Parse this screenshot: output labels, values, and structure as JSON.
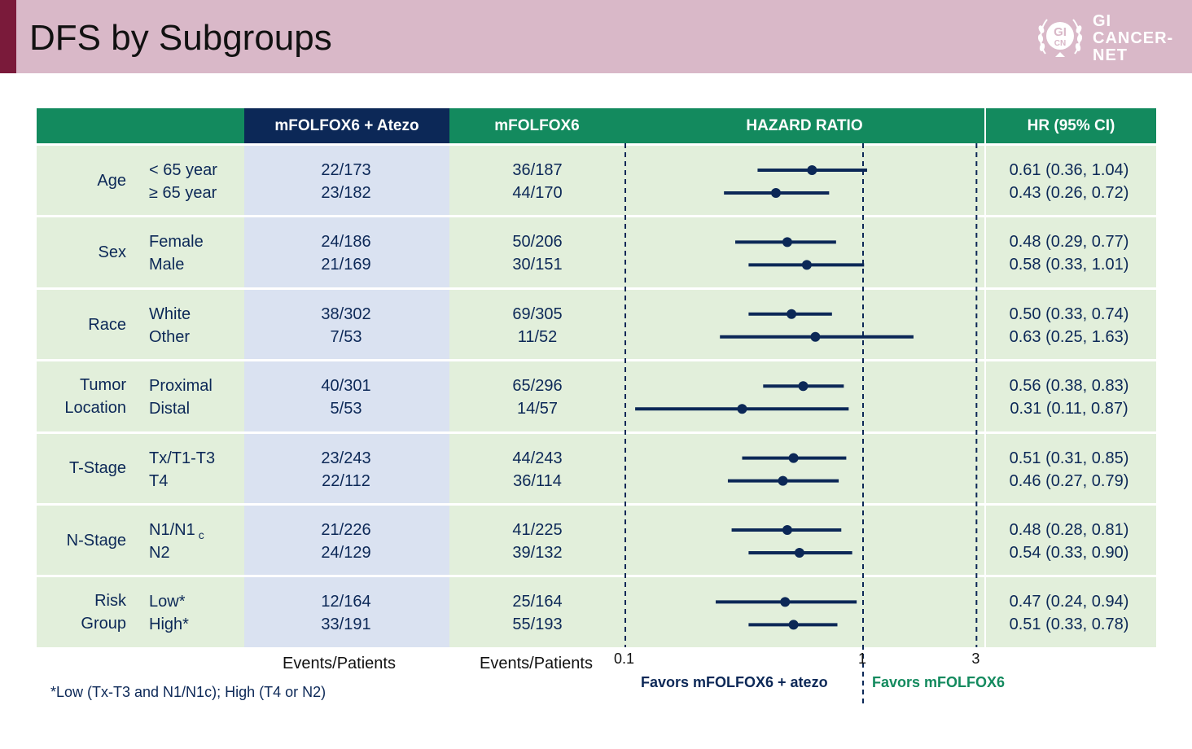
{
  "title": "DFS by Subgroups",
  "logo": {
    "lines": [
      "GI",
      "CANCER-",
      "NET"
    ],
    "badge_top": "GI",
    "badge_bottom": "CN"
  },
  "columns": {
    "atezo": "mFOLFOX6 + Atezo",
    "control": "mFOLFOX6",
    "hazard": "HAZARD RATIO",
    "hr": "HR (95% CI)"
  },
  "footer": {
    "events_atezo": "Events/Patients",
    "events_control": "Events/Patients",
    "favors_left": "Favors mFOLFOX6 + atezo",
    "favors_right": "Favors mFOLFOX6",
    "footnote": "*Low (Tx-T3 and N1/N1c); High (T4 or N2)"
  },
  "colors": {
    "header_band": "#d9b8c8",
    "accent": "#7a1a3a",
    "green": "#138a5e",
    "navy": "#0c2857",
    "row_green": "#e2efdb",
    "row_blue": "#dae2f1"
  },
  "chart_data": {
    "type": "forest",
    "x_scale": "log",
    "xlim": [
      0.1,
      3
    ],
    "x_ticks": [
      "0.1",
      "1",
      "3"
    ],
    "reference_lines": [
      0.1,
      1,
      3
    ],
    "groups": [
      {
        "label": [
          "Age"
        ],
        "rows": [
          {
            "sub": "< 65 year",
            "atezo": "22/173",
            "control": "36/187",
            "hr": 0.61,
            "lo": 0.36,
            "hi": 1.04,
            "hr_text": "0.61 (0.36, 1.04)"
          },
          {
            "sub": "≥ 65 year",
            "atezo": "23/182",
            "control": "44/170",
            "hr": 0.43,
            "lo": 0.26,
            "hi": 0.72,
            "hr_text": "0.43 (0.26, 0.72)"
          }
        ]
      },
      {
        "label": [
          "Sex"
        ],
        "rows": [
          {
            "sub": "Female",
            "atezo": "24/186",
            "control": "50/206",
            "hr": 0.48,
            "lo": 0.29,
            "hi": 0.77,
            "hr_text": "0.48 (0.29, 0.77)"
          },
          {
            "sub": "Male",
            "atezo": "21/169",
            "control": "30/151",
            "hr": 0.58,
            "lo": 0.33,
            "hi": 1.01,
            "hr_text": "0.58 (0.33, 1.01)"
          }
        ]
      },
      {
        "label": [
          "Race"
        ],
        "rows": [
          {
            "sub": "White",
            "atezo": "38/302",
            "control": "69/305",
            "hr": 0.5,
            "lo": 0.33,
            "hi": 0.74,
            "hr_text": "0.50 (0.33, 0.74)"
          },
          {
            "sub": "Other",
            "atezo": "7/53",
            "control": "11/52",
            "hr": 0.63,
            "lo": 0.25,
            "hi": 1.63,
            "hr_text": "0.63 (0.25, 1.63)"
          }
        ]
      },
      {
        "label": [
          "Tumor",
          "Location"
        ],
        "rows": [
          {
            "sub": "Proximal",
            "atezo": "40/301",
            "control": "65/296",
            "hr": 0.56,
            "lo": 0.38,
            "hi": 0.83,
            "hr_text": "0.56 (0.38, 0.83)"
          },
          {
            "sub": "Distal",
            "atezo": "5/53",
            "control": "14/57",
            "hr": 0.31,
            "lo": 0.11,
            "hi": 0.87,
            "hr_text": "0.31 (0.11, 0.87)"
          }
        ]
      },
      {
        "label": [
          "T-Stage"
        ],
        "rows": [
          {
            "sub": "Tx/T1-T3",
            "atezo": "23/243",
            "control": "44/243",
            "hr": 0.51,
            "lo": 0.31,
            "hi": 0.85,
            "hr_text": "0.51 (0.31, 0.85)"
          },
          {
            "sub": "T4",
            "atezo": "22/112",
            "control": "36/114",
            "hr": 0.46,
            "lo": 0.27,
            "hi": 0.79,
            "hr_text": "0.46 (0.27, 0.79)"
          }
        ]
      },
      {
        "label": [
          "N-Stage"
        ],
        "rows": [
          {
            "sub": "N1/N1",
            "sub_suffix": "c",
            "atezo": "21/226",
            "control": "41/225",
            "hr": 0.48,
            "lo": 0.28,
            "hi": 0.81,
            "hr_text": "0.48 (0.28, 0.81)"
          },
          {
            "sub": "N2",
            "atezo": "24/129",
            "control": "39/132",
            "hr": 0.54,
            "lo": 0.33,
            "hi": 0.9,
            "hr_text": "0.54 (0.33, 0.90)"
          }
        ]
      },
      {
        "label": [
          "Risk",
          "Group"
        ],
        "rows": [
          {
            "sub": "Low*",
            "atezo": "12/164",
            "control": "25/164",
            "hr": 0.47,
            "lo": 0.24,
            "hi": 0.94,
            "hr_text": "0.47 (0.24, 0.94)"
          },
          {
            "sub": "High*",
            "atezo": "33/191",
            "control": "55/193",
            "hr": 0.51,
            "lo": 0.33,
            "hi": 0.78,
            "hr_text": "0.51 (0.33, 0.78)"
          }
        ]
      }
    ]
  }
}
